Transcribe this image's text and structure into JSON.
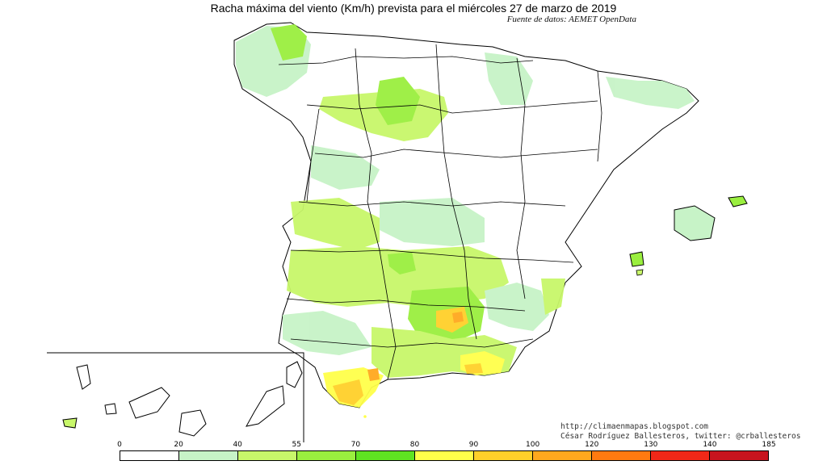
{
  "header": {
    "title": "Racha máxima del viento (Km/h) prevista para el miércoles 27 de marzo de 2019",
    "source": "Fuente de datos: AEMET OpenData"
  },
  "credits": {
    "line1": "http://climaenmapas.blogspot.com",
    "line2": "César Rodríguez Ballesteros, twitter: @crballesteros"
  },
  "legend": {
    "ticks": [
      "0",
      "20",
      "40",
      "55",
      "70",
      "80",
      "90",
      "100",
      "120",
      "130",
      "140",
      "185"
    ],
    "colors": [
      "#ffffff",
      "#c7f3c7",
      "#c8f76a",
      "#9aef3f",
      "#5fe322",
      "#ffff4a",
      "#ffd02a",
      "#ffa81e",
      "#ff7a10",
      "#f02818",
      "#c8141e",
      "#a51424"
    ]
  },
  "map": {
    "land_base": "#ffffff",
    "border_color": "#000000"
  }
}
